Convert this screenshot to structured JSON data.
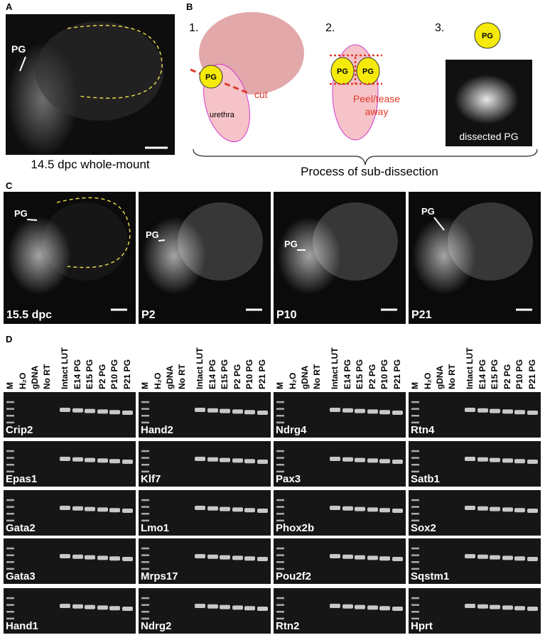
{
  "panels": {
    "a": {
      "label": "A",
      "marker": "PG",
      "caption": "14.5 dpc whole-mount"
    },
    "b": {
      "label": "B",
      "steps": [
        "1.",
        "2.",
        "3."
      ],
      "pg": "PG",
      "cut": "cut",
      "urethra": "urethra",
      "peel": [
        "Peel/tease",
        "away"
      ],
      "dissected": "dissected PG",
      "caption": "Process of sub-dissection"
    },
    "c": {
      "label": "C",
      "marker": "PG",
      "images": [
        "15.5 dpc",
        "P2",
        "P10",
        "P21"
      ]
    },
    "d": {
      "label": "D",
      "lanes": [
        "M",
        "H₂O",
        "gDNA",
        "No RT",
        "Intact LUT",
        "E14 PG",
        "E15 PG",
        "P2 PG",
        "P10 PG",
        "P21 PG"
      ],
      "genes": [
        [
          "Crip2",
          "Epas1",
          "Gata2",
          "Gata3",
          "Hand1"
        ],
        [
          "Hand2",
          "Klf7",
          "Lmo1",
          "Mrps17",
          "Ndrg2"
        ],
        [
          "Ndrg4",
          "Pax3",
          "Phox2b",
          "Pou2f2",
          "Rtn2"
        ],
        [
          "Rtn4",
          "Satb1",
          "Sox2",
          "Sqstm1",
          "Hprt"
        ]
      ]
    }
  }
}
